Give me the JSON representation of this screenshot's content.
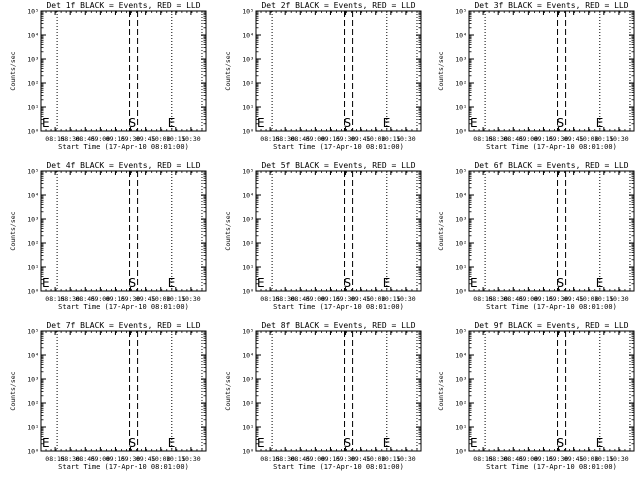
{
  "chart_data": {
    "type": "line",
    "xlabel": "Start Time (17-Apr-10 08:01:00)",
    "ylabel": "Counts/sec",
    "x_tick_labels": [
      "08:15",
      "08:30",
      "08:45",
      "09:00",
      "09:15",
      "09:30",
      "09:45",
      "10:00",
      "10:15",
      "10:30"
    ],
    "x_tick_minutes": [
      14,
      29,
      44,
      59,
      74,
      89,
      104,
      119,
      134,
      149
    ],
    "xlim_minutes": [
      0,
      164
    ],
    "y_tick_labels": [
      "10⁰",
      "10¹",
      "10²",
      "10³",
      "10⁴",
      "10⁵"
    ],
    "ylim_log10": [
      0,
      5
    ],
    "panels": [
      {
        "title": "Det 1f BLACK = Events, RED = LLD",
        "markers": [
          {
            "label": "E",
            "minute": 0
          },
          {
            "label": "S",
            "minute": 91
          },
          {
            "label": "E",
            "minute": 130
          }
        ],
        "dashed_minutes": [
          88,
          96
        ],
        "dotted_minutes": [
          16,
          130,
          160
        ],
        "series": []
      },
      {
        "title": "Det 2f BLACK = Events, RED = LLD",
        "markers": [
          {
            "label": "E",
            "minute": 0
          },
          {
            "label": "S",
            "minute": 91
          },
          {
            "label": "E",
            "minute": 130
          }
        ],
        "dashed_minutes": [
          88,
          96
        ],
        "dotted_minutes": [
          16,
          130,
          160
        ],
        "series": []
      },
      {
        "title": "Det 3f BLACK = Events, RED = LLD",
        "markers": [
          {
            "label": "E",
            "minute": 0
          },
          {
            "label": "S",
            "minute": 91
          },
          {
            "label": "E",
            "minute": 130
          }
        ],
        "dashed_minutes": [
          88,
          96
        ],
        "dotted_minutes": [
          16,
          130,
          160
        ],
        "series": []
      },
      {
        "title": "Det 4f BLACK = Events, RED = LLD",
        "markers": [
          {
            "label": "E",
            "minute": 0
          },
          {
            "label": "S",
            "minute": 91
          },
          {
            "label": "E",
            "minute": 130
          }
        ],
        "dashed_minutes": [
          88,
          96
        ],
        "dotted_minutes": [
          16,
          130,
          160
        ],
        "series": []
      },
      {
        "title": "Det 5f BLACK = Events, RED = LLD",
        "markers": [
          {
            "label": "E",
            "minute": 0
          },
          {
            "label": "S",
            "minute": 91
          },
          {
            "label": "E",
            "minute": 130
          }
        ],
        "dashed_minutes": [
          88,
          96
        ],
        "dotted_minutes": [
          16,
          130,
          160
        ],
        "series": []
      },
      {
        "title": "Det 6f BLACK = Events, RED = LLD",
        "markers": [
          {
            "label": "E",
            "minute": 0
          },
          {
            "label": "S",
            "minute": 91
          },
          {
            "label": "E",
            "minute": 130
          }
        ],
        "dashed_minutes": [
          88,
          96
        ],
        "dotted_minutes": [
          16,
          130,
          160
        ],
        "series": []
      },
      {
        "title": "Det 7f BLACK = Events, RED = LLD",
        "markers": [
          {
            "label": "E",
            "minute": 0
          },
          {
            "label": "S",
            "minute": 91
          },
          {
            "label": "E",
            "minute": 130
          }
        ],
        "dashed_minutes": [
          88,
          96
        ],
        "dotted_minutes": [
          16,
          130,
          160
        ],
        "series": []
      },
      {
        "title": "Det 8f BLACK = Events, RED = LLD",
        "markers": [
          {
            "label": "E",
            "minute": 0
          },
          {
            "label": "S",
            "minute": 91
          },
          {
            "label": "E",
            "minute": 130
          }
        ],
        "dashed_minutes": [
          88,
          96
        ],
        "dotted_minutes": [
          16,
          130,
          160
        ],
        "series": []
      },
      {
        "title": "Det 9f BLACK = Events, RED = LLD",
        "markers": [
          {
            "label": "E",
            "minute": 0
          },
          {
            "label": "S",
            "minute": 91
          },
          {
            "label": "E",
            "minute": 130
          }
        ],
        "dashed_minutes": [
          88,
          96
        ],
        "dotted_minutes": [
          16,
          130,
          160
        ],
        "series": []
      }
    ]
  }
}
